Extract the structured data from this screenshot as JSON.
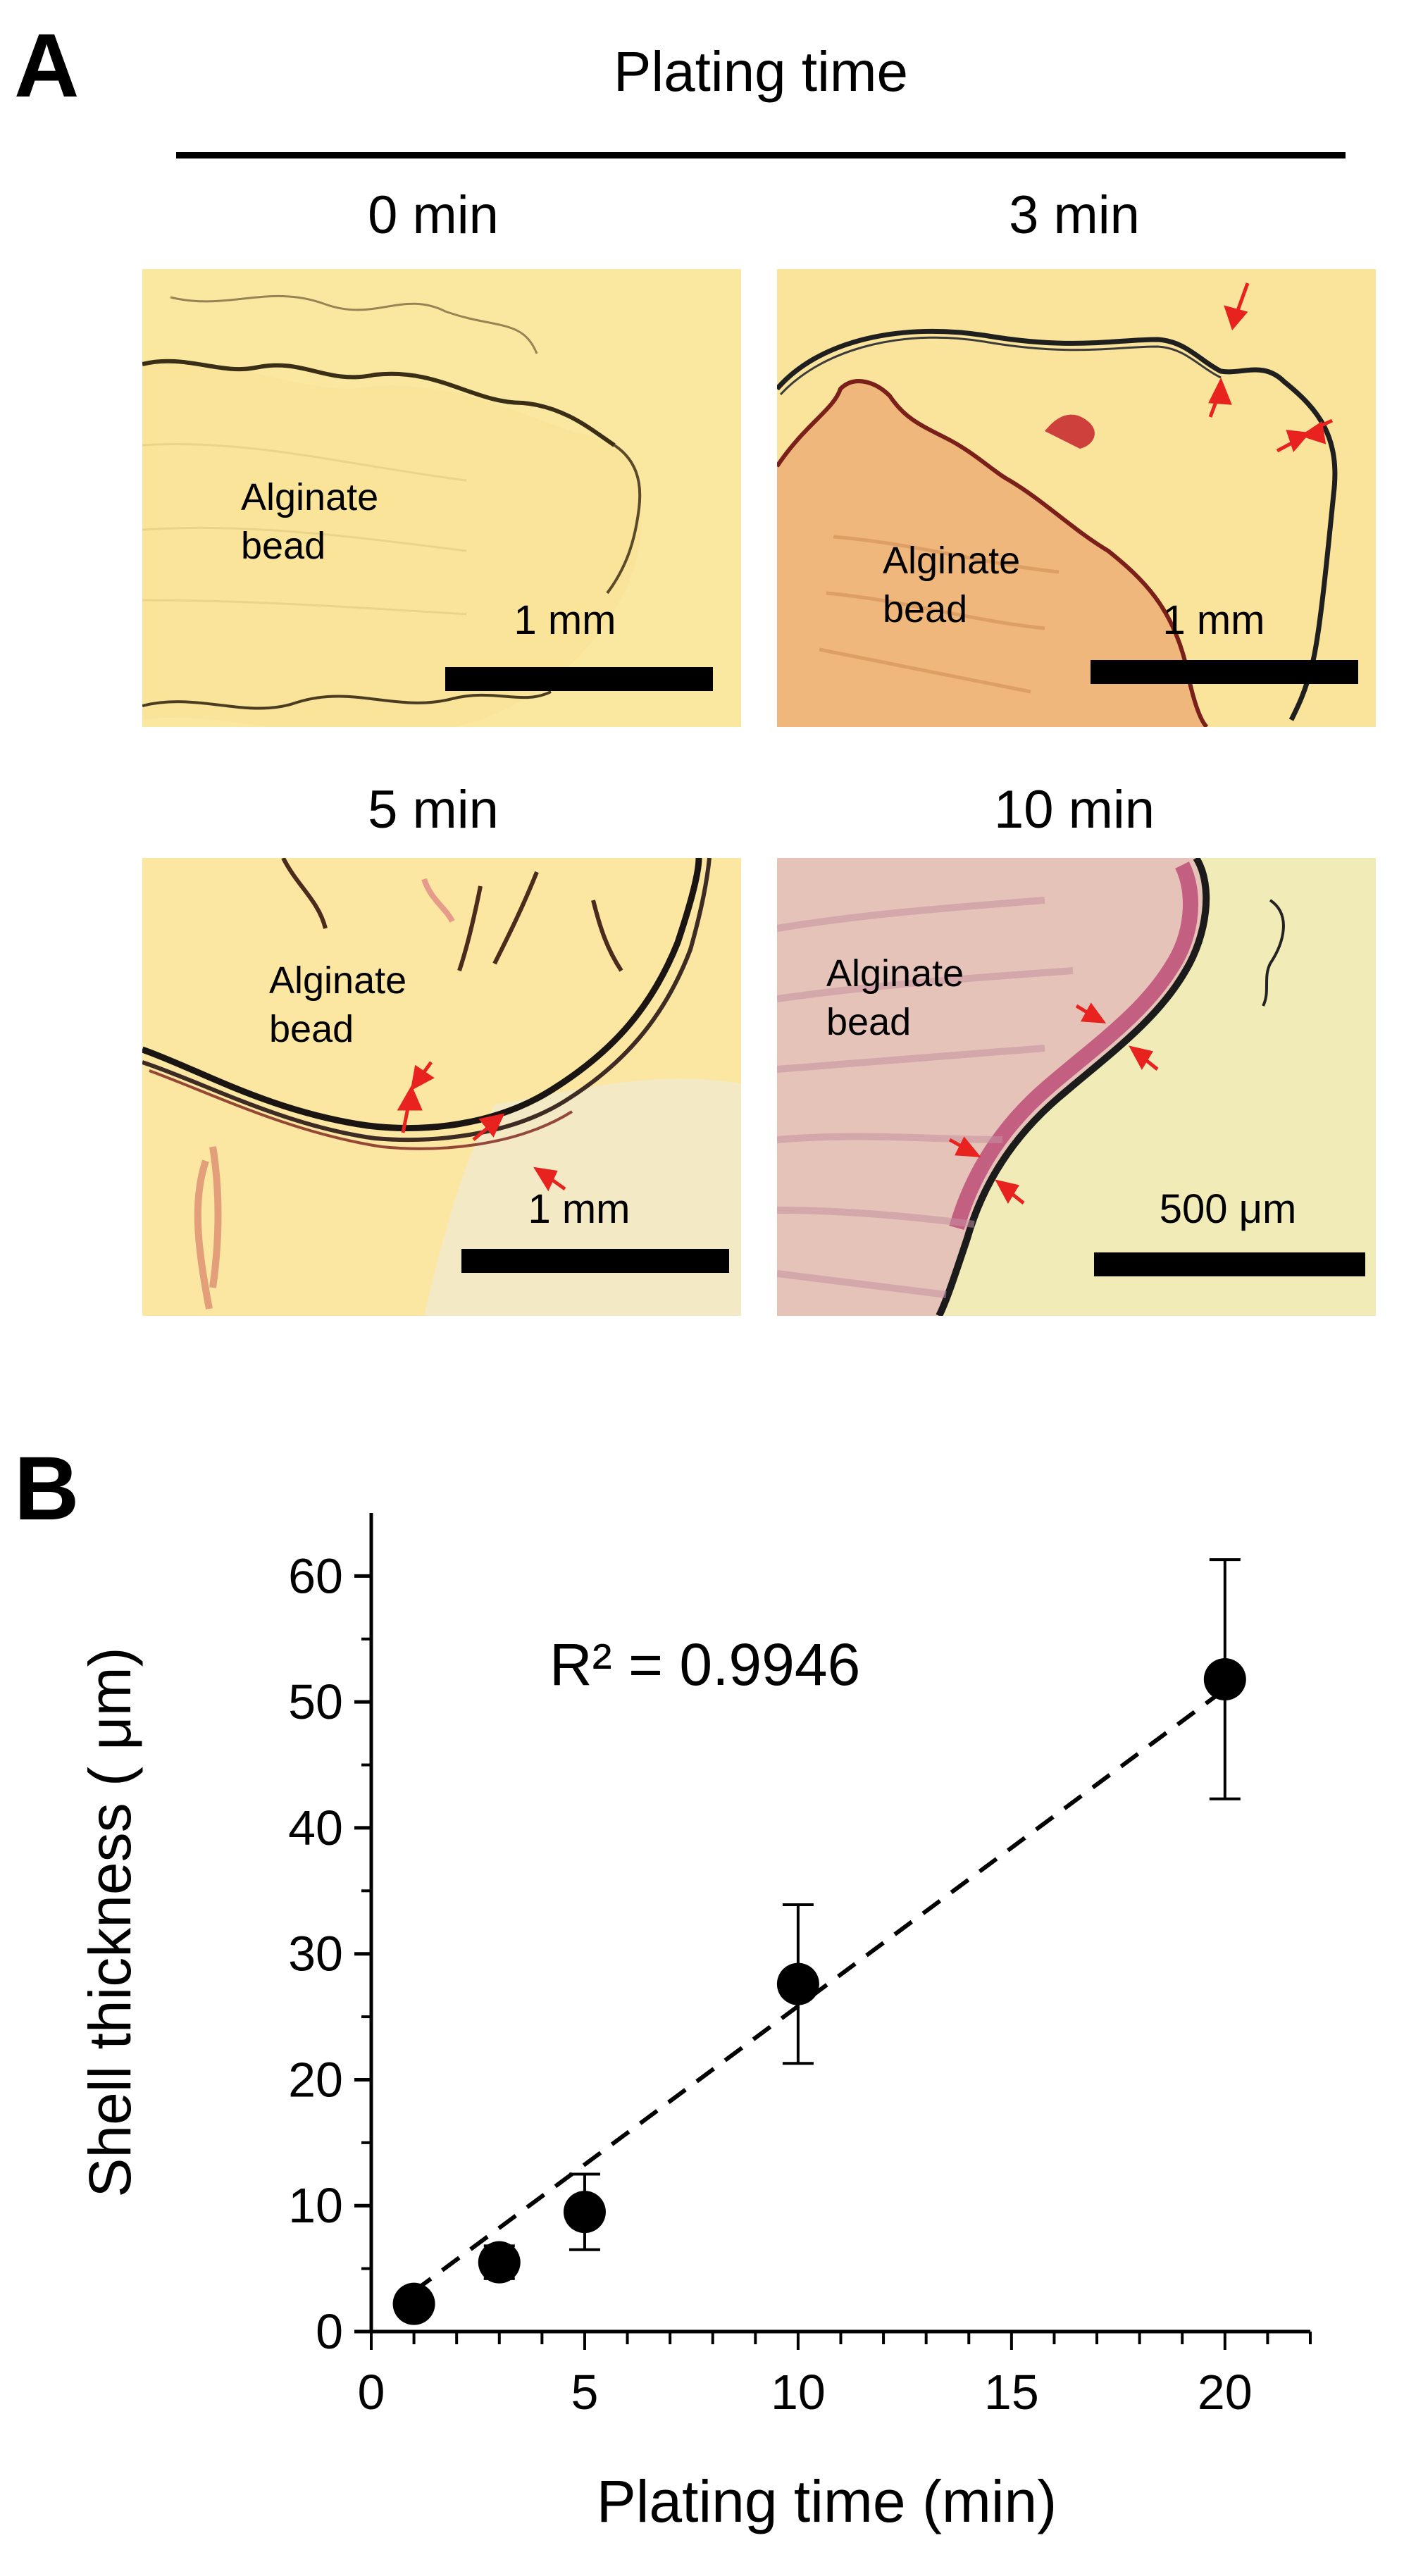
{
  "figure": {
    "panel_a_letter": "A",
    "panel_b_letter": "B",
    "panel_a_title": "Plating time"
  },
  "micrographs": [
    {
      "time_label": "0 min",
      "bead_label": "Alginate\nbead",
      "scale_label": "1 mm",
      "background_color": "#fbe8a0"
    },
    {
      "time_label": "3 min",
      "bead_label": "Alginate\nbead",
      "scale_label": "1 mm",
      "background_color": "#fae39b"
    },
    {
      "time_label": "5 min",
      "bead_label": "Alginate\nbead",
      "scale_label": "1 mm",
      "background_color": "#fbe6a2"
    },
    {
      "time_label": "10 min",
      "bead_label": "Alginate\nbead",
      "scale_label": "500 μm",
      "background_color": "#f1ebb8"
    }
  ],
  "chart_data": {
    "type": "scatter",
    "xlabel": "Plating time (min)",
    "ylabel": "Shell thickness ( μm)",
    "xlim": [
      0,
      22
    ],
    "ylim": [
      0,
      65
    ],
    "x_ticks": [
      0,
      5,
      10,
      15,
      20
    ],
    "y_ticks": [
      0,
      10,
      20,
      30,
      40,
      50,
      60
    ],
    "grid": false,
    "annotation": "R² = 0.9946",
    "series": [
      {
        "x": [
          1,
          3,
          5,
          10,
          20
        ],
        "y": [
          2.2,
          5.5,
          9.5,
          27.6,
          51.8
        ],
        "error": [
          0.8,
          1.3,
          3.0,
          6.3,
          9.5
        ]
      }
    ],
    "trendline": {
      "style": "dashed",
      "x": [
        1,
        20
      ],
      "y": [
        3.2,
        51.0
      ]
    },
    "colors": {
      "marker": "#000000",
      "arrow": "#e8231f"
    }
  }
}
